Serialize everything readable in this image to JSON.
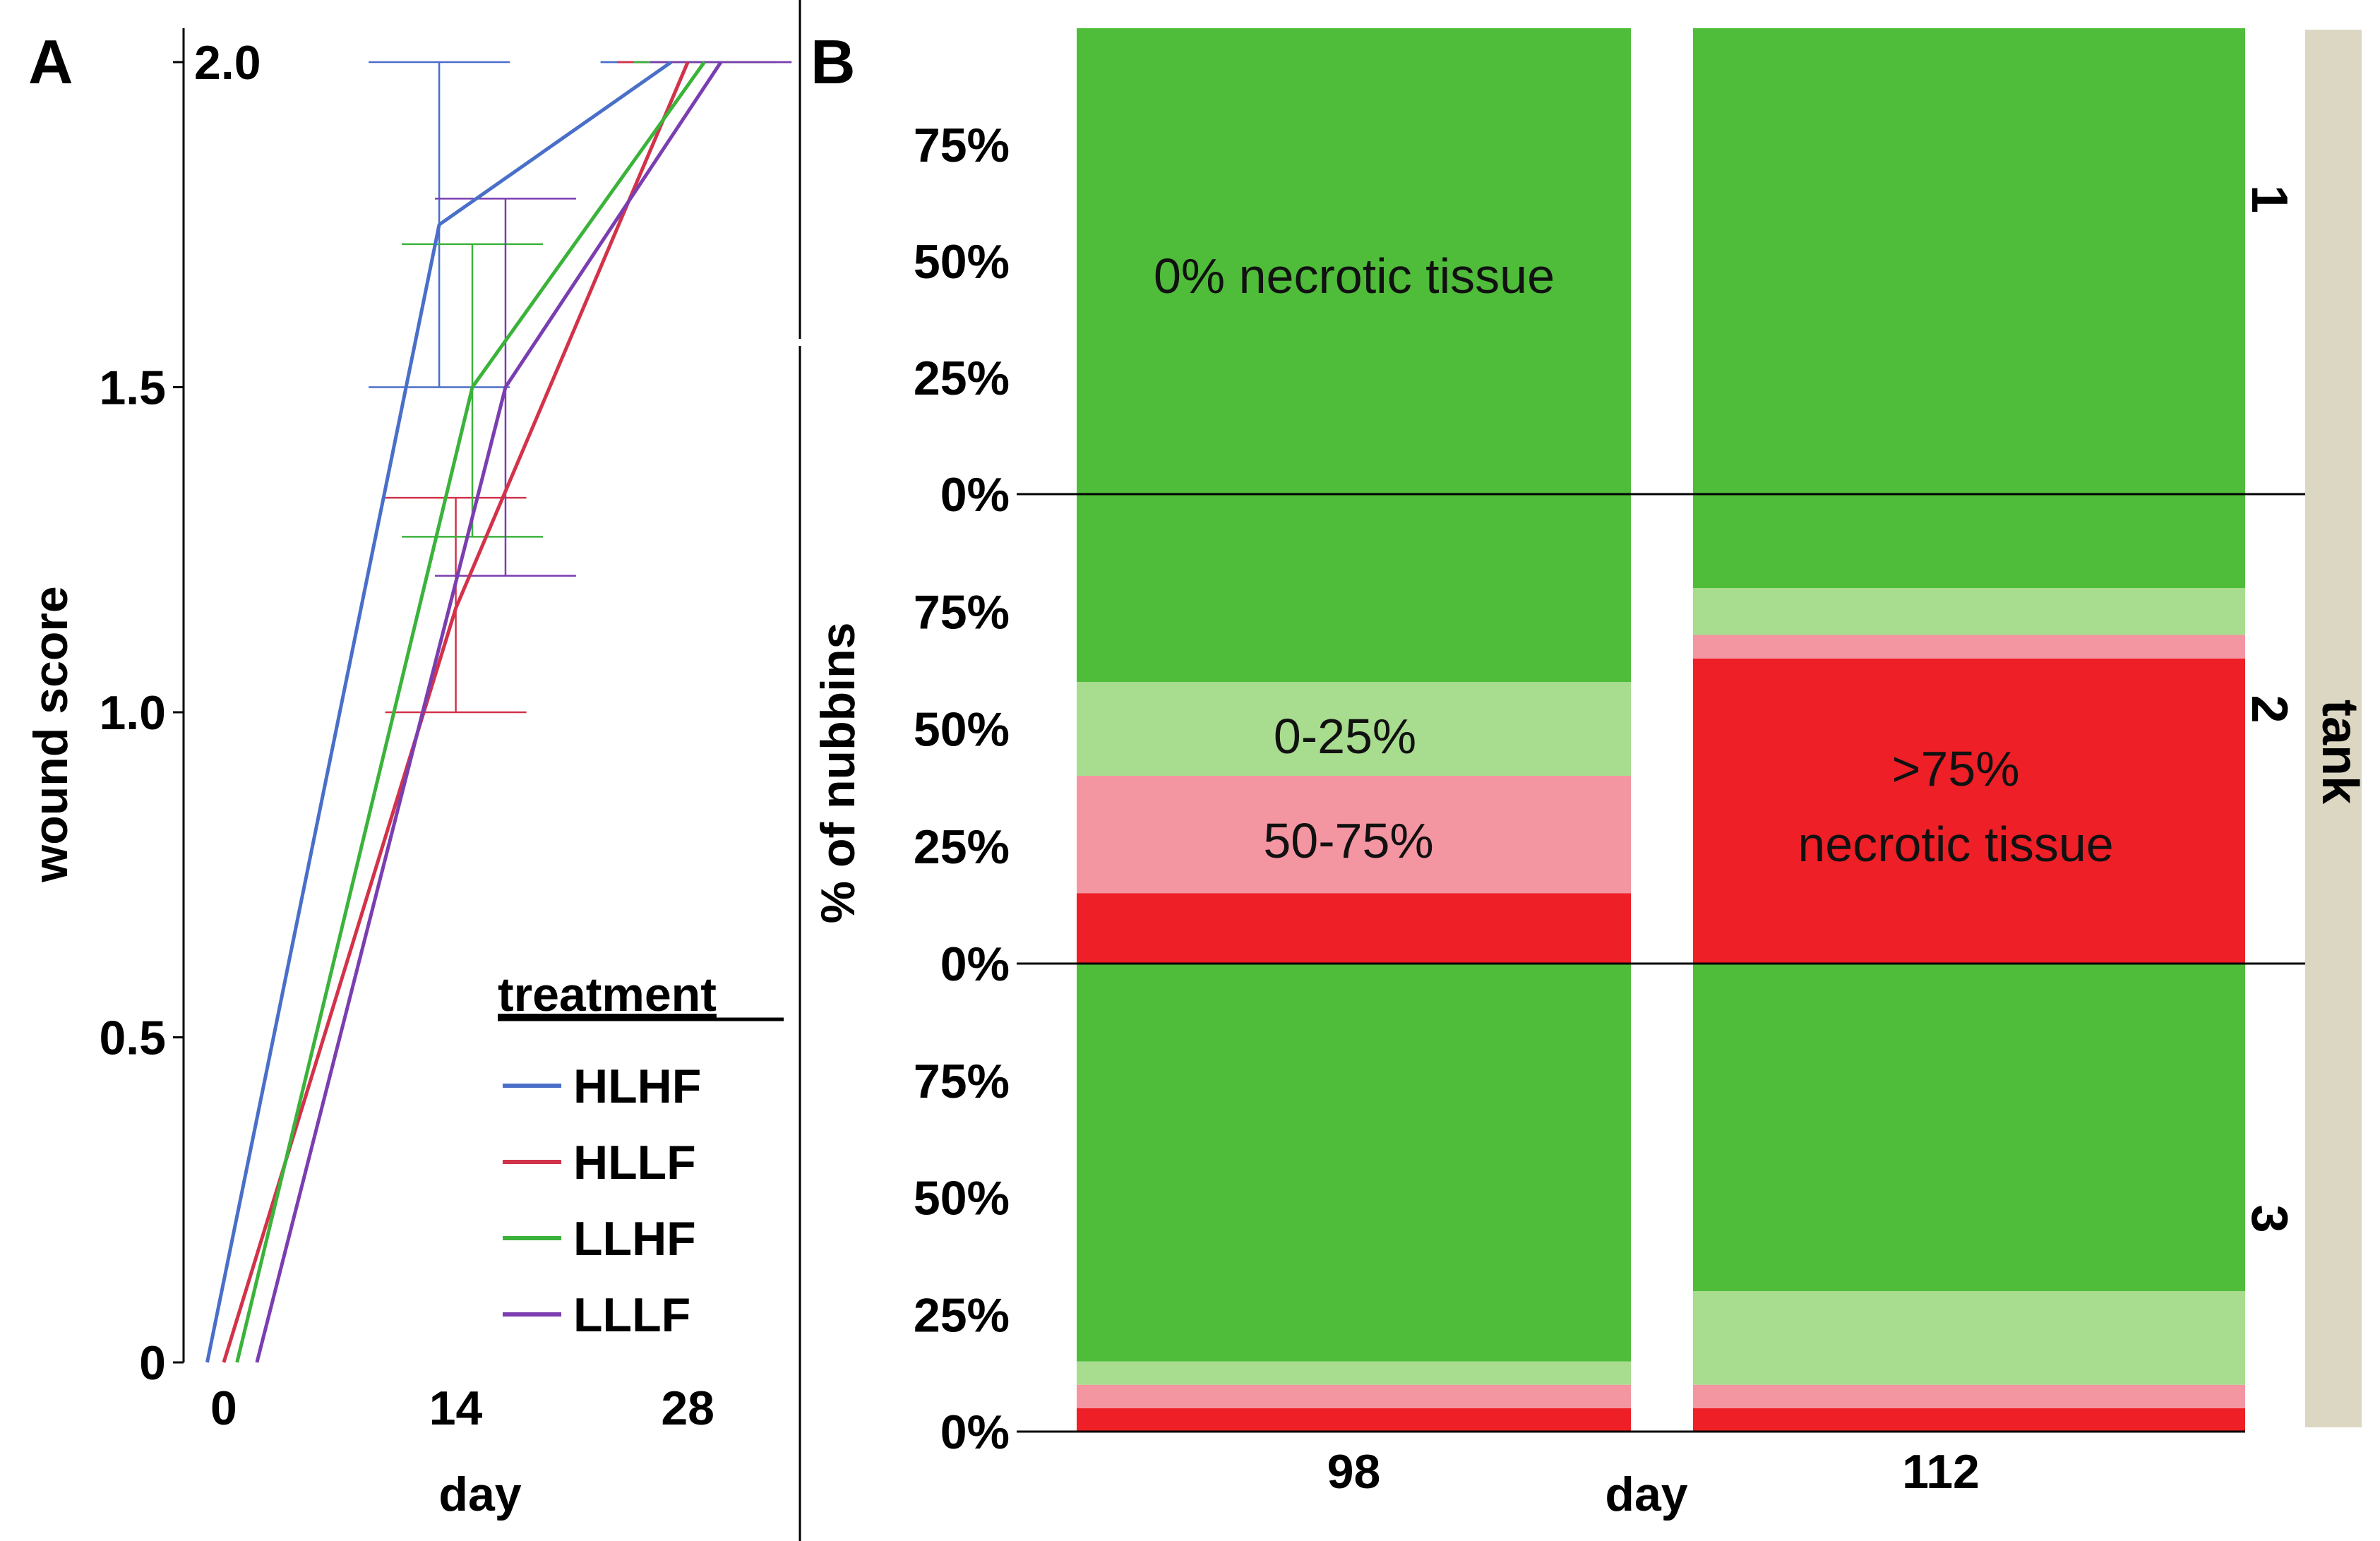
{
  "colors": {
    "HLHF": "#4a6fc9",
    "HLLF": "#d2334a",
    "LLHF": "#3bb33b",
    "LLLF": "#7a3eb0",
    "none": "#4fbc3a",
    "low": "#a8dc8e",
    "mid": "#f495a2",
    "high": "#ee1f26",
    "strip": "#dcd7c3"
  },
  "chart_data": [
    {
      "panel": "A",
      "type": "line",
      "xlabel": "day",
      "ylabel": "wound score",
      "x_ticks": [
        "0",
        "14",
        "28"
      ],
      "y_ticks": [
        "0",
        "0.5",
        "1.0",
        "1.5",
        "2.0"
      ],
      "xlim": [
        -2,
        34
      ],
      "ylim": [
        0,
        2.0
      ],
      "legend": {
        "title": "treatment",
        "position": "bottom-right"
      },
      "series": [
        {
          "name": "HLHF",
          "x": [
            -1,
            13,
            27
          ],
          "y": [
            0,
            1.75,
            2.0
          ],
          "err_x": [
            13,
            27
          ],
          "err_lo": [
            1.5,
            2.0
          ],
          "err_hi": [
            2.0,
            2.0
          ]
        },
        {
          "name": "HLLF",
          "x": [
            0,
            14,
            28
          ],
          "y": [
            0,
            1.16,
            2.0
          ],
          "err_x": [
            14,
            28
          ],
          "err_lo": [
            1.0,
            2.0
          ],
          "err_hi": [
            1.33,
            2.0
          ]
        },
        {
          "name": "LLHF",
          "x": [
            0.8,
            15,
            29
          ],
          "y": [
            0,
            1.5,
            2.0
          ],
          "err_x": [
            15,
            29
          ],
          "err_lo": [
            1.27,
            2.0
          ],
          "err_hi": [
            1.72,
            2.0
          ]
        },
        {
          "name": "LLLF",
          "x": [
            2,
            17,
            30
          ],
          "y": [
            0,
            1.5,
            2.0
          ],
          "err_x": [
            17,
            30
          ],
          "err_lo": [
            1.21,
            2.0
          ],
          "err_hi": [
            1.79,
            2.0
          ]
        }
      ]
    },
    {
      "panel": "B",
      "type": "bar",
      "stacked": true,
      "xlabel": "day",
      "ylabel": "% of nubbins",
      "facet_label": "tank",
      "categories": [
        "98",
        "112"
      ],
      "y_ticks": [
        "0%",
        "25%",
        "50%",
        "75%"
      ],
      "ylim": [
        0,
        100
      ],
      "series": [
        {
          "name": ">75%",
          "color_key": "high"
        },
        {
          "name": "50-75%",
          "color_key": "mid"
        },
        {
          "name": "0-25%",
          "color_key": "low"
        },
        {
          "name": "0%",
          "color_key": "none"
        }
      ],
      "tanks": [
        {
          "tank": "1",
          "values": {
            "98": [
              0,
              0,
              0,
              100
            ],
            "112": [
              0,
              0,
              0,
              100
            ]
          }
        },
        {
          "tank": "2",
          "values": {
            "98": [
              15,
              25,
              20,
              40
            ],
            "112": [
              65,
              5,
              10,
              20
            ]
          }
        },
        {
          "tank": "3",
          "values": {
            "98": [
              5,
              5,
              5,
              85
            ],
            "112": [
              5,
              5,
              20,
              70
            ]
          }
        }
      ],
      "annotations": [
        {
          "tank": "1",
          "text": "0% necrotic tissue"
        },
        {
          "tank": "2",
          "text": "0-25%"
        },
        {
          "tank": "2",
          "text": "50-75%"
        },
        {
          "tank": "2",
          "text": ">75%"
        },
        {
          "tank": "2",
          "text": "necrotic tissue"
        }
      ]
    }
  ]
}
